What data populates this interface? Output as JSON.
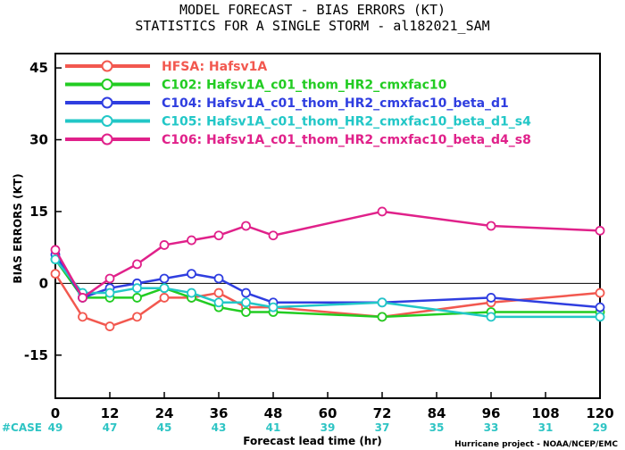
{
  "chart_data": {
    "type": "line",
    "title_line1": "MODEL FORECAST - BIAS ERRORS (KT)",
    "title_line2": "STATISTICS FOR A SINGLE STORM - al182021_SAM",
    "xlabel": "Forecast lead time (hr)",
    "ylabel": "BIAS ERRORS (KT)",
    "xlim": [
      0,
      120
    ],
    "ylim": [
      -24,
      48
    ],
    "x_ticks": [
      "0",
      "12",
      "24",
      "36",
      "48",
      "60",
      "72",
      "84",
      "96",
      "108",
      "120"
    ],
    "y_ticks": [
      "45",
      "30",
      "15",
      "0",
      "-15"
    ],
    "case_label": "#CASE",
    "cases": [
      "49",
      "47",
      "45",
      "43",
      "41",
      "39",
      "37",
      "35",
      "33",
      "31",
      "29"
    ],
    "credit": "Hurricane project - NOAA/NCEP/EMC",
    "series": [
      {
        "name": "HFSA: Hafsv1A",
        "color": "#f2584f",
        "x": [
          0,
          6,
          12,
          18,
          24,
          30,
          36,
          42,
          48,
          72,
          96,
          120
        ],
        "values": [
          2,
          -7,
          -9,
          -7,
          -3,
          -3,
          -2,
          -5,
          -5,
          -7,
          -4,
          -2
        ]
      },
      {
        "name": "C102: Hafsv1A_c01_thom_HR2_cmxfac10",
        "color": "#22cc22",
        "x": [
          0,
          6,
          12,
          18,
          24,
          30,
          36,
          42,
          48,
          72,
          96,
          120
        ],
        "values": [
          5,
          -3,
          -3,
          -3,
          -1,
          -3,
          -5,
          -6,
          -6,
          -7,
          -6,
          -6
        ]
      },
      {
        "name": "C104: Hafsv1A_c01_thom_HR2_cmxfac10_beta_d1",
        "color": "#2f3ee0",
        "x": [
          0,
          6,
          12,
          18,
          24,
          30,
          36,
          42,
          48,
          72,
          96,
          120
        ],
        "values": [
          6,
          -3,
          -1,
          0,
          1,
          2,
          1,
          -2,
          -4,
          -4,
          -3,
          -5
        ]
      },
      {
        "name": "C105: Hafsv1A_c01_thom_HR2_cmxfac10_beta_d1_s4",
        "color": "#22c7c7",
        "x": [
          0,
          6,
          12,
          18,
          24,
          30,
          36,
          42,
          48,
          72,
          96,
          120
        ],
        "values": [
          5,
          -2,
          -2,
          -1,
          -1,
          -2,
          -4,
          -4,
          -5,
          -4,
          -7,
          -7
        ]
      },
      {
        "name": "C106: Hafsv1A_c01_thom_HR2_cmxfac10_beta_d4_s8",
        "color": "#e0218a",
        "x": [
          0,
          6,
          12,
          18,
          24,
          30,
          36,
          42,
          48,
          72,
          96,
          120
        ],
        "values": [
          7,
          -3,
          1,
          4,
          8,
          9,
          10,
          12,
          10,
          15,
          12,
          11
        ]
      }
    ]
  }
}
